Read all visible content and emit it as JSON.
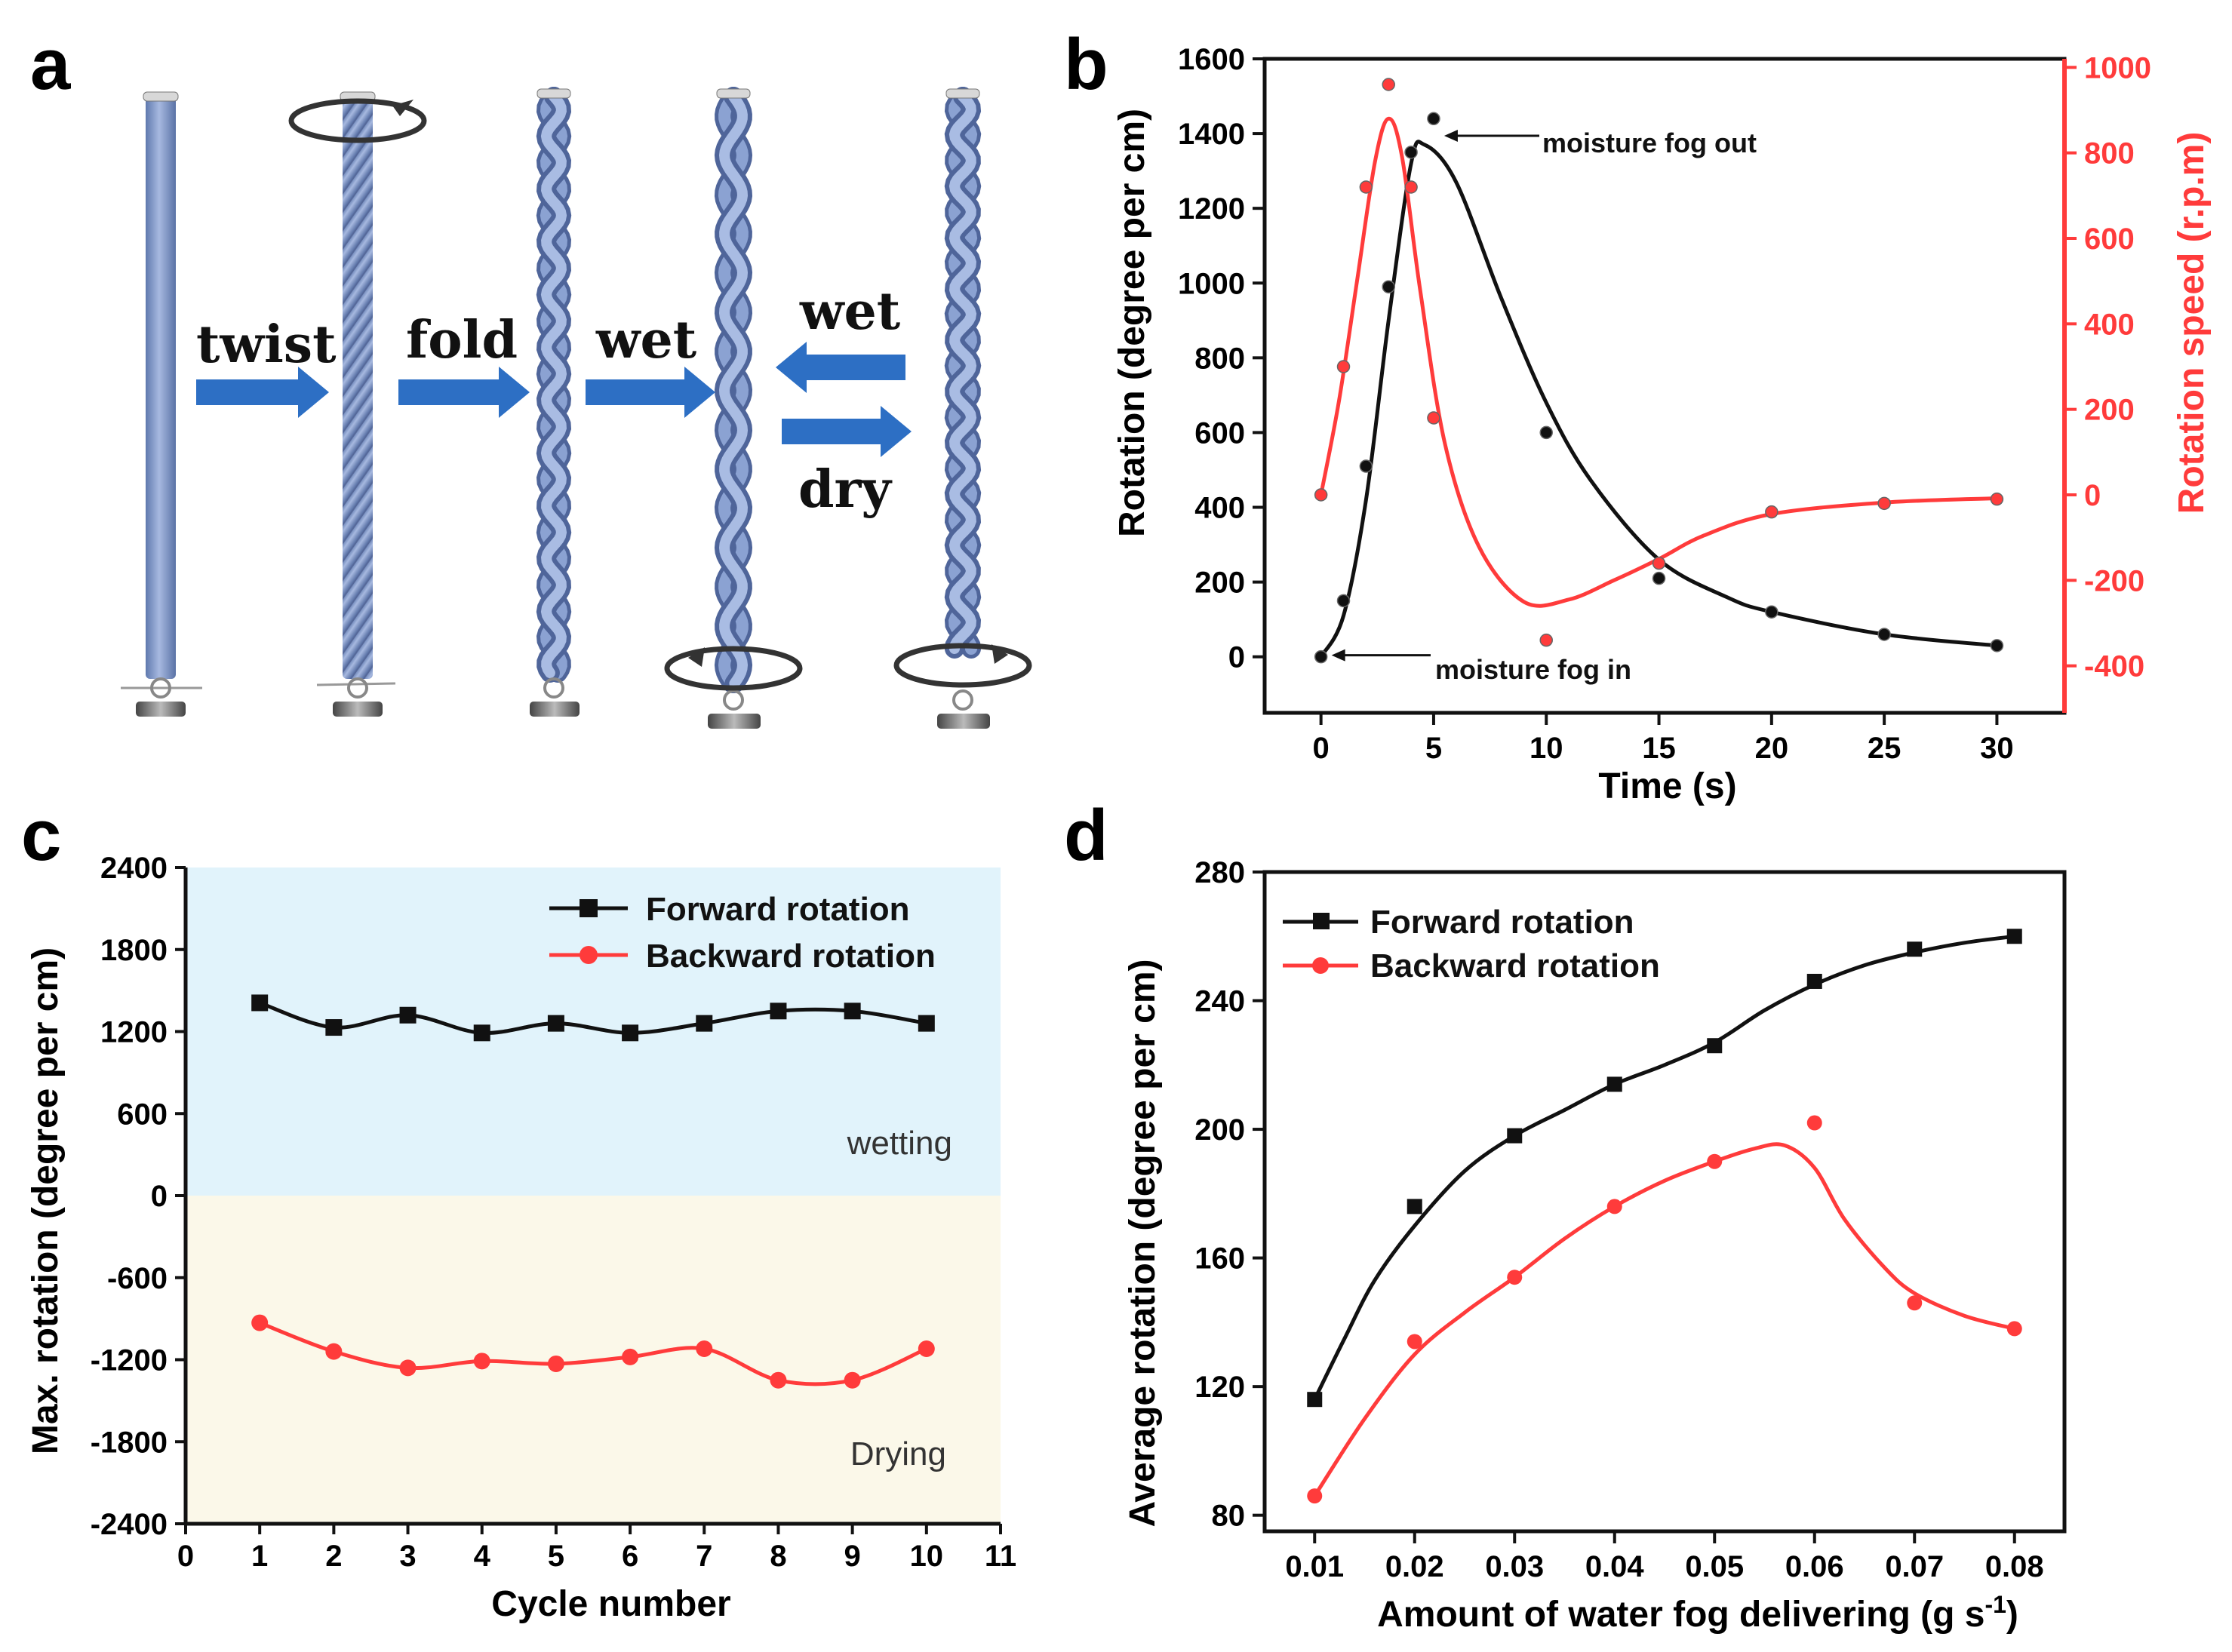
{
  "panel_a": {
    "letter": "a",
    "arrow_labels": [
      "twist",
      "fold",
      "wet",
      "wet",
      "dry"
    ]
  },
  "colors": {
    "black": "#111111",
    "red": "#ff3b3b",
    "fiber": "#7e97c9",
    "arrow": "#2d6fc4",
    "wet_bg": "#e1f3fb",
    "dry_bg": "#fbf8e9"
  },
  "chart_data": [
    {
      "id": "b",
      "letter": "b",
      "type": "line",
      "xlabel": "Time (s)",
      "ylabel": "Rotation (degree per cm)",
      "y2label": "Rotation speed (r.p.m)",
      "xlim": [
        -2.5,
        33
      ],
      "ylim": [
        -150,
        1600
      ],
      "y2lim": [
        -510,
        1020
      ],
      "xticks": [
        0,
        5,
        10,
        15,
        20,
        25,
        30
      ],
      "yticks": [
        0,
        200,
        400,
        600,
        800,
        1000,
        1200,
        1400,
        1600
      ],
      "y2ticks": [
        -400,
        -200,
        0,
        200,
        400,
        600,
        800,
        1000
      ],
      "series": [
        {
          "name": "Rotation",
          "axis": "left",
          "color": "#111111",
          "points": [
            [
              0,
              0
            ],
            [
              1,
              150
            ],
            [
              2,
              510
            ],
            [
              3,
              990
            ],
            [
              4,
              1350
            ],
            [
              5,
              1440
            ],
            [
              10,
              600
            ],
            [
              15,
              210
            ],
            [
              20,
              120
            ],
            [
              25,
              60
            ],
            [
              30,
              30
            ]
          ],
          "curve": [
            [
              0,
              0
            ],
            [
              1,
              110
            ],
            [
              2,
              420
            ],
            [
              3,
              900
            ],
            [
              4,
              1320
            ],
            [
              4.6,
              1370
            ],
            [
              6,
              1270
            ],
            [
              8,
              960
            ],
            [
              10,
              680
            ],
            [
              12,
              470
            ],
            [
              15,
              260
            ],
            [
              18,
              160
            ],
            [
              20,
              120
            ],
            [
              25,
              60
            ],
            [
              30,
              30
            ]
          ]
        },
        {
          "name": "Rotation speed",
          "axis": "right",
          "color": "#ff3b3b",
          "points": [
            [
              0,
              0
            ],
            [
              1,
              300
            ],
            [
              2,
              720
            ],
            [
              3,
              960
            ],
            [
              4,
              720
            ],
            [
              5,
              180
            ],
            [
              10,
              -340
            ],
            [
              15,
              -160
            ],
            [
              20,
              -40
            ],
            [
              25,
              -20
            ],
            [
              30,
              -10
            ]
          ],
          "curve": [
            [
              0,
              0
            ],
            [
              0.8,
              220
            ],
            [
              1.6,
              500
            ],
            [
              2.4,
              780
            ],
            [
              3,
              880
            ],
            [
              3.6,
              790
            ],
            [
              4.4,
              480
            ],
            [
              5.5,
              120
            ],
            [
              7,
              -120
            ],
            [
              9,
              -250
            ],
            [
              11,
              -245
            ],
            [
              13,
              -200
            ],
            [
              15,
              -150
            ],
            [
              17,
              -95
            ],
            [
              20,
              -45
            ],
            [
              25,
              -18
            ],
            [
              30,
              -8
            ]
          ]
        }
      ],
      "annotations": [
        {
          "text": "moisture fog out",
          "x": 5,
          "y": 1390
        },
        {
          "text": "moisture fog in",
          "x": 0,
          "y": 0
        }
      ]
    },
    {
      "id": "c",
      "letter": "c",
      "type": "line",
      "xlabel": "Cycle number",
      "ylabel": "Max. rotation (degree per cm)",
      "xlim": [
        0,
        11
      ],
      "ylim": [
        -2400,
        2400
      ],
      "xticks": [
        0,
        1,
        2,
        3,
        4,
        5,
        6,
        7,
        8,
        9,
        10,
        11
      ],
      "yticks": [
        -2400,
        -1800,
        -1200,
        -600,
        0,
        600,
        1200,
        1800,
        2400
      ],
      "regions": [
        {
          "label": "wetting",
          "from": 0,
          "to": 2400
        },
        {
          "label": "Drying",
          "from": -2400,
          "to": 0
        }
      ],
      "series": [
        {
          "name": "Forward rotation",
          "marker": "square",
          "color": "#111111",
          "x": [
            1,
            2,
            3,
            4,
            5,
            6,
            7,
            8,
            9,
            10
          ],
          "values": [
            1410,
            1230,
            1320,
            1190,
            1260,
            1190,
            1260,
            1350,
            1350,
            1260
          ]
        },
        {
          "name": "Backward rotation",
          "marker": "circle",
          "color": "#ff3b3b",
          "x": [
            1,
            2,
            3,
            4,
            5,
            6,
            7,
            8,
            9,
            10
          ],
          "values": [
            -930,
            -1140,
            -1260,
            -1210,
            -1230,
            -1180,
            -1120,
            -1350,
            -1350,
            -1120
          ]
        }
      ]
    },
    {
      "id": "d",
      "letter": "d",
      "type": "line",
      "xlabel": "Amount of water fog delivering (g s",
      "xlabel_sup": "-1",
      "xlabel_end": ")",
      "ylabel": "Average rotation (degree per cm)",
      "xlim": [
        0.005,
        0.085
      ],
      "ylim": [
        75,
        280
      ],
      "xticks": [
        0.01,
        0.02,
        0.03,
        0.04,
        0.05,
        0.06,
        0.07,
        0.08
      ],
      "xtick_labels": [
        "0.01",
        "0.02",
        "0.03",
        "0.04",
        "0.05",
        "0.06",
        "0.07",
        "0.08"
      ],
      "yticks": [
        80,
        120,
        160,
        200,
        240,
        280
      ],
      "series": [
        {
          "name": "Forward rotation",
          "marker": "square",
          "color": "#111111",
          "x": [
            0.01,
            0.02,
            0.03,
            0.04,
            0.05,
            0.06,
            0.07,
            0.08
          ],
          "values": [
            116,
            176,
            198,
            214,
            226,
            246,
            256,
            260
          ],
          "curve": [
            [
              0.01,
              116
            ],
            [
              0.013,
              135
            ],
            [
              0.016,
              153
            ],
            [
              0.02,
              170
            ],
            [
              0.025,
              187
            ],
            [
              0.03,
              198
            ],
            [
              0.035,
              206
            ],
            [
              0.04,
              214
            ],
            [
              0.045,
              220
            ],
            [
              0.05,
              227
            ],
            [
              0.055,
              237
            ],
            [
              0.06,
              245
            ],
            [
              0.065,
              251
            ],
            [
              0.07,
              255
            ],
            [
              0.075,
              258
            ],
            [
              0.08,
              260
            ]
          ]
        },
        {
          "name": "Backward rotation",
          "marker": "circle",
          "color": "#ff3b3b",
          "x": [
            0.01,
            0.02,
            0.03,
            0.04,
            0.05,
            0.06,
            0.07,
            0.08
          ],
          "values": [
            86,
            134,
            154,
            176,
            190,
            202,
            146,
            138
          ],
          "curve": [
            [
              0.01,
              86
            ],
            [
              0.015,
              110
            ],
            [
              0.02,
              130
            ],
            [
              0.025,
              143
            ],
            [
              0.03,
              154
            ],
            [
              0.035,
              166
            ],
            [
              0.04,
              176
            ],
            [
              0.045,
              184
            ],
            [
              0.05,
              190
            ],
            [
              0.054,
              194
            ],
            [
              0.057,
              195
            ],
            [
              0.06,
              188
            ],
            [
              0.063,
              172
            ],
            [
              0.067,
              157
            ],
            [
              0.07,
              149
            ],
            [
              0.075,
              142
            ],
            [
              0.08,
              138
            ]
          ]
        }
      ]
    }
  ]
}
